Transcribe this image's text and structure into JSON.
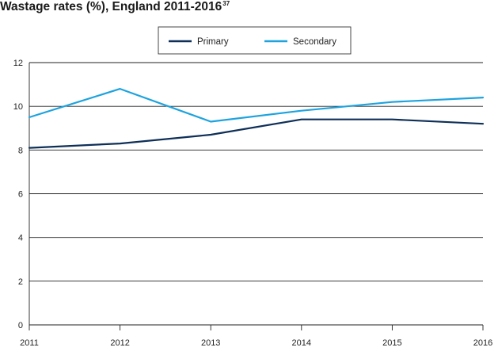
{
  "title": {
    "text": "Wastage rates (%), England 2011-2016",
    "superscript": "37"
  },
  "colors": {
    "primary": "#0e2f58",
    "secondary": "#1ea3de",
    "grid": "#222222"
  },
  "chart_data": {
    "type": "line",
    "title": "Wastage rates (%), England 2011-2016",
    "xlabel": "",
    "ylabel": "",
    "x": [
      "2011",
      "2012",
      "2013",
      "2014",
      "2015",
      "2016"
    ],
    "ylim": [
      0,
      12
    ],
    "yticks": [
      0,
      2,
      4,
      6,
      8,
      10,
      12
    ],
    "grid": true,
    "legend_position": "top-center",
    "series": [
      {
        "name": "Primary",
        "color": "#0e2f58",
        "values": [
          8.1,
          8.3,
          8.7,
          9.4,
          9.4,
          9.2
        ]
      },
      {
        "name": "Secondary",
        "color": "#1ea3de",
        "values": [
          9.5,
          10.8,
          9.3,
          9.8,
          10.2,
          10.4
        ]
      }
    ]
  }
}
